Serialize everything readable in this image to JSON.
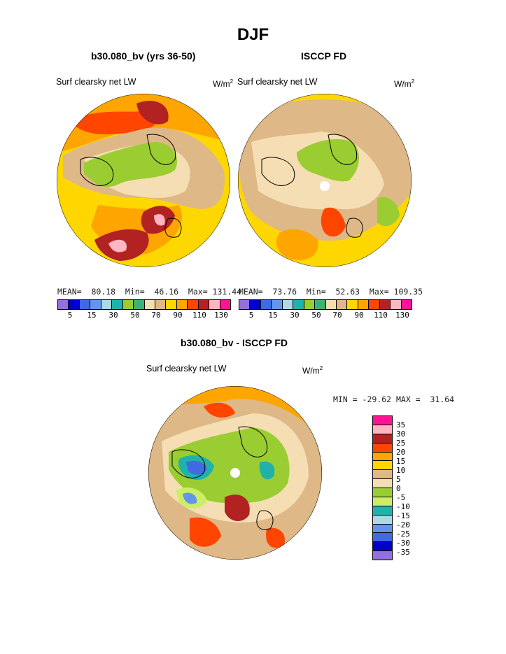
{
  "title": "DJF",
  "panels": [
    {
      "title": "b30.080_bv (yrs 36-50)",
      "variable": "Surf clearsky net LW",
      "unit_base": "W/m",
      "unit_sup": "2",
      "stats": "MEAN=  80.18  Min=  46.16  Max= 131.44"
    },
    {
      "title": "ISCCP FD",
      "variable": "Surf clearsky net LW",
      "unit_base": "W/m",
      "unit_sup": "2",
      "stats": "MEAN=  73.76  Min=  52.63  Max= 109.35"
    },
    {
      "title": "b30.080_bv - ISCCP FD",
      "variable": "Surf clearsky net LW",
      "unit_base": "W/m",
      "unit_sup": "2",
      "stats": "MIN = -29.62 MAX =  31.64"
    }
  ],
  "colorbar_top": {
    "colors": [
      "#9370db",
      "#0000cd",
      "#4169e1",
      "#6495ed",
      "#add8e6",
      "#20b2aa",
      "#9acd32",
      "#3cb371",
      "#f5deb3",
      "#deb887",
      "#ffd700",
      "#ffa500",
      "#ff4500",
      "#b22222",
      "#ffb6c1",
      "#ff1493"
    ],
    "labels": [
      "5",
      "15",
      "30",
      "50",
      "70",
      "90",
      "110",
      "130"
    ]
  },
  "colorbar_diff": {
    "colors": [
      "#ff1493",
      "#ffb6c1",
      "#b22222",
      "#ff4500",
      "#ffa500",
      "#ffd700",
      "#deb887",
      "#f5deb3",
      "#9acd32",
      "#ccee66",
      "#20b2aa",
      "#add8e6",
      "#6495ed",
      "#4169e1",
      "#0000cd",
      "#9370db"
    ],
    "labels": [
      "35",
      "30",
      "25",
      "20",
      "15",
      "10",
      "5",
      "0",
      "-5",
      "-10",
      "-15",
      "-20",
      "-25",
      "-30",
      "-35"
    ]
  }
}
